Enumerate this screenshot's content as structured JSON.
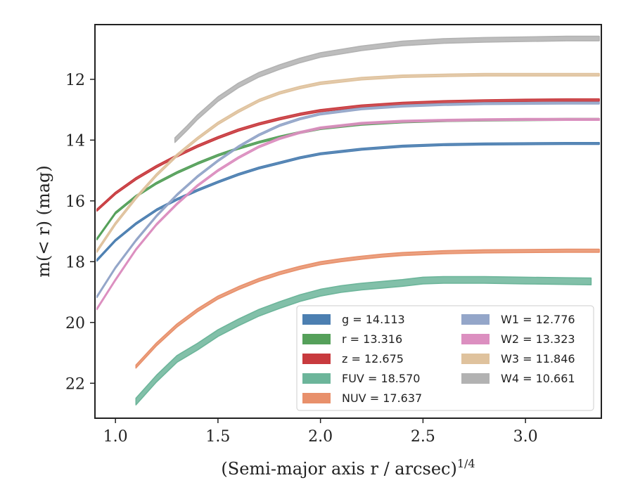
{
  "chart_data": {
    "type": "line",
    "xlabel": "(Semi-major axis r / arcsec)",
    "xlabel_sup": "1/4",
    "ylabel": "m(< r) (mag)",
    "xlim": [
      0.9,
      3.37
    ],
    "ylim": [
      23.15,
      10.2
    ],
    "y_inverted": true,
    "xticks": [
      1.0,
      1.5,
      2.0,
      2.5,
      3.0
    ],
    "xtick_labels": [
      "1.0",
      "1.5",
      "2.0",
      "2.5",
      "3.0"
    ],
    "yticks": [
      12,
      14,
      16,
      18,
      20,
      22
    ],
    "ytick_labels": [
      "12",
      "14",
      "16",
      "18",
      "20",
      "22"
    ],
    "legend_position": "lower-right",
    "series": [
      {
        "name": "g = 14.113",
        "color": "#4c7fb1",
        "band_width": 0.06,
        "x": [
          0.91,
          1.0,
          1.1,
          1.2,
          1.3,
          1.4,
          1.5,
          1.6,
          1.7,
          1.8,
          1.9,
          2.0,
          2.2,
          2.4,
          2.6,
          2.8,
          3.0,
          3.2,
          3.36
        ],
        "y": [
          17.95,
          17.3,
          16.75,
          16.3,
          15.95,
          15.65,
          15.38,
          15.13,
          14.92,
          14.75,
          14.58,
          14.45,
          14.3,
          14.2,
          14.15,
          14.13,
          14.12,
          14.11,
          14.11
        ]
      },
      {
        "name": "r = 13.316",
        "color": "#55a05a",
        "band_width": 0.06,
        "x": [
          0.91,
          1.0,
          1.1,
          1.2,
          1.3,
          1.4,
          1.5,
          1.6,
          1.7,
          1.8,
          1.9,
          2.0,
          2.2,
          2.4,
          2.6,
          2.8,
          3.0,
          3.2,
          3.36
        ],
        "y": [
          17.25,
          16.4,
          15.85,
          15.42,
          15.07,
          14.77,
          14.5,
          14.27,
          14.07,
          13.9,
          13.75,
          13.62,
          13.48,
          13.4,
          13.36,
          13.34,
          13.33,
          13.32,
          13.32
        ]
      },
      {
        "name": "z = 12.675",
        "color": "#c83a3e",
        "band_width": 0.07,
        "x": [
          0.91,
          1.0,
          1.1,
          1.2,
          1.3,
          1.4,
          1.5,
          1.6,
          1.7,
          1.8,
          1.9,
          2.0,
          2.2,
          2.4,
          2.6,
          2.8,
          3.0,
          3.2,
          3.36
        ],
        "y": [
          16.3,
          15.75,
          15.27,
          14.87,
          14.52,
          14.2,
          13.92,
          13.67,
          13.47,
          13.3,
          13.15,
          13.03,
          12.88,
          12.79,
          12.74,
          12.71,
          12.69,
          12.68,
          12.68
        ]
      },
      {
        "name": "FUV = 18.570",
        "color": "#6cb59a",
        "band_width": 0.22,
        "x": [
          1.1,
          1.2,
          1.3,
          1.4,
          1.5,
          1.6,
          1.7,
          1.8,
          1.9,
          2.0,
          2.1,
          2.2,
          2.3,
          2.4,
          2.5,
          2.6,
          2.7,
          2.8,
          3.0,
          3.2,
          3.32
        ],
        "y": [
          22.6,
          21.85,
          21.2,
          20.8,
          20.35,
          20.0,
          19.68,
          19.43,
          19.2,
          19.02,
          18.9,
          18.82,
          18.76,
          18.7,
          18.62,
          18.6,
          18.6,
          18.6,
          18.62,
          18.64,
          18.65
        ]
      },
      {
        "name": "NUV = 17.637",
        "color": "#e8906b",
        "band_width": 0.1,
        "x": [
          1.1,
          1.2,
          1.3,
          1.4,
          1.5,
          1.6,
          1.7,
          1.8,
          1.9,
          2.0,
          2.1,
          2.2,
          2.3,
          2.4,
          2.6,
          2.8,
          3.0,
          3.2,
          3.36
        ],
        "y": [
          21.45,
          20.72,
          20.1,
          19.6,
          19.18,
          18.87,
          18.6,
          18.38,
          18.2,
          18.05,
          17.95,
          17.87,
          17.8,
          17.75,
          17.69,
          17.66,
          17.65,
          17.64,
          17.64
        ]
      },
      {
        "name": "W1 = 12.776",
        "color": "#94a6c9",
        "band_width": 0.06,
        "x": [
          0.91,
          1.0,
          1.1,
          1.2,
          1.3,
          1.4,
          1.5,
          1.6,
          1.7,
          1.8,
          1.9,
          2.0,
          2.2,
          2.4,
          2.6,
          2.8,
          3.0,
          3.2,
          3.36
        ],
        "y": [
          19.15,
          18.2,
          17.3,
          16.5,
          15.8,
          15.2,
          14.68,
          14.22,
          13.83,
          13.52,
          13.3,
          13.14,
          12.97,
          12.88,
          12.83,
          12.8,
          12.79,
          12.78,
          12.78
        ]
      },
      {
        "name": "W2 = 13.323",
        "color": "#dc8fc0",
        "band_width": 0.06,
        "x": [
          0.91,
          1.0,
          1.1,
          1.2,
          1.3,
          1.4,
          1.5,
          1.6,
          1.7,
          1.8,
          1.9,
          2.0,
          2.2,
          2.4,
          2.6,
          2.8,
          3.0,
          3.2,
          3.36
        ],
        "y": [
          19.55,
          18.6,
          17.6,
          16.78,
          16.1,
          15.5,
          15.0,
          14.58,
          14.22,
          13.95,
          13.75,
          13.6,
          13.45,
          13.38,
          13.35,
          13.33,
          13.32,
          13.32,
          13.32
        ]
      },
      {
        "name": "W3 = 11.846",
        "color": "#dfc29d",
        "band_width": 0.08,
        "x": [
          0.91,
          1.0,
          1.1,
          1.2,
          1.3,
          1.4,
          1.5,
          1.6,
          1.7,
          1.8,
          1.9,
          2.0,
          2.2,
          2.4,
          2.6,
          2.8,
          3.0,
          3.2,
          3.36
        ],
        "y": [
          17.65,
          16.75,
          15.9,
          15.15,
          14.5,
          13.95,
          13.45,
          13.05,
          12.7,
          12.45,
          12.27,
          12.13,
          11.98,
          11.9,
          11.87,
          11.85,
          11.85,
          11.85,
          11.85
        ]
      },
      {
        "name": "W4 = 10.661",
        "color": "#b2b2b2",
        "band_width": 0.15,
        "x": [
          1.29,
          1.35,
          1.4,
          1.5,
          1.6,
          1.7,
          1.8,
          1.9,
          2.0,
          2.2,
          2.4,
          2.6,
          2.8,
          3.0,
          3.2,
          3.36
        ],
        "y": [
          14.0,
          13.6,
          13.25,
          12.65,
          12.2,
          11.85,
          11.6,
          11.38,
          11.2,
          10.98,
          10.82,
          10.74,
          10.7,
          10.68,
          10.66,
          10.66
        ]
      }
    ]
  }
}
